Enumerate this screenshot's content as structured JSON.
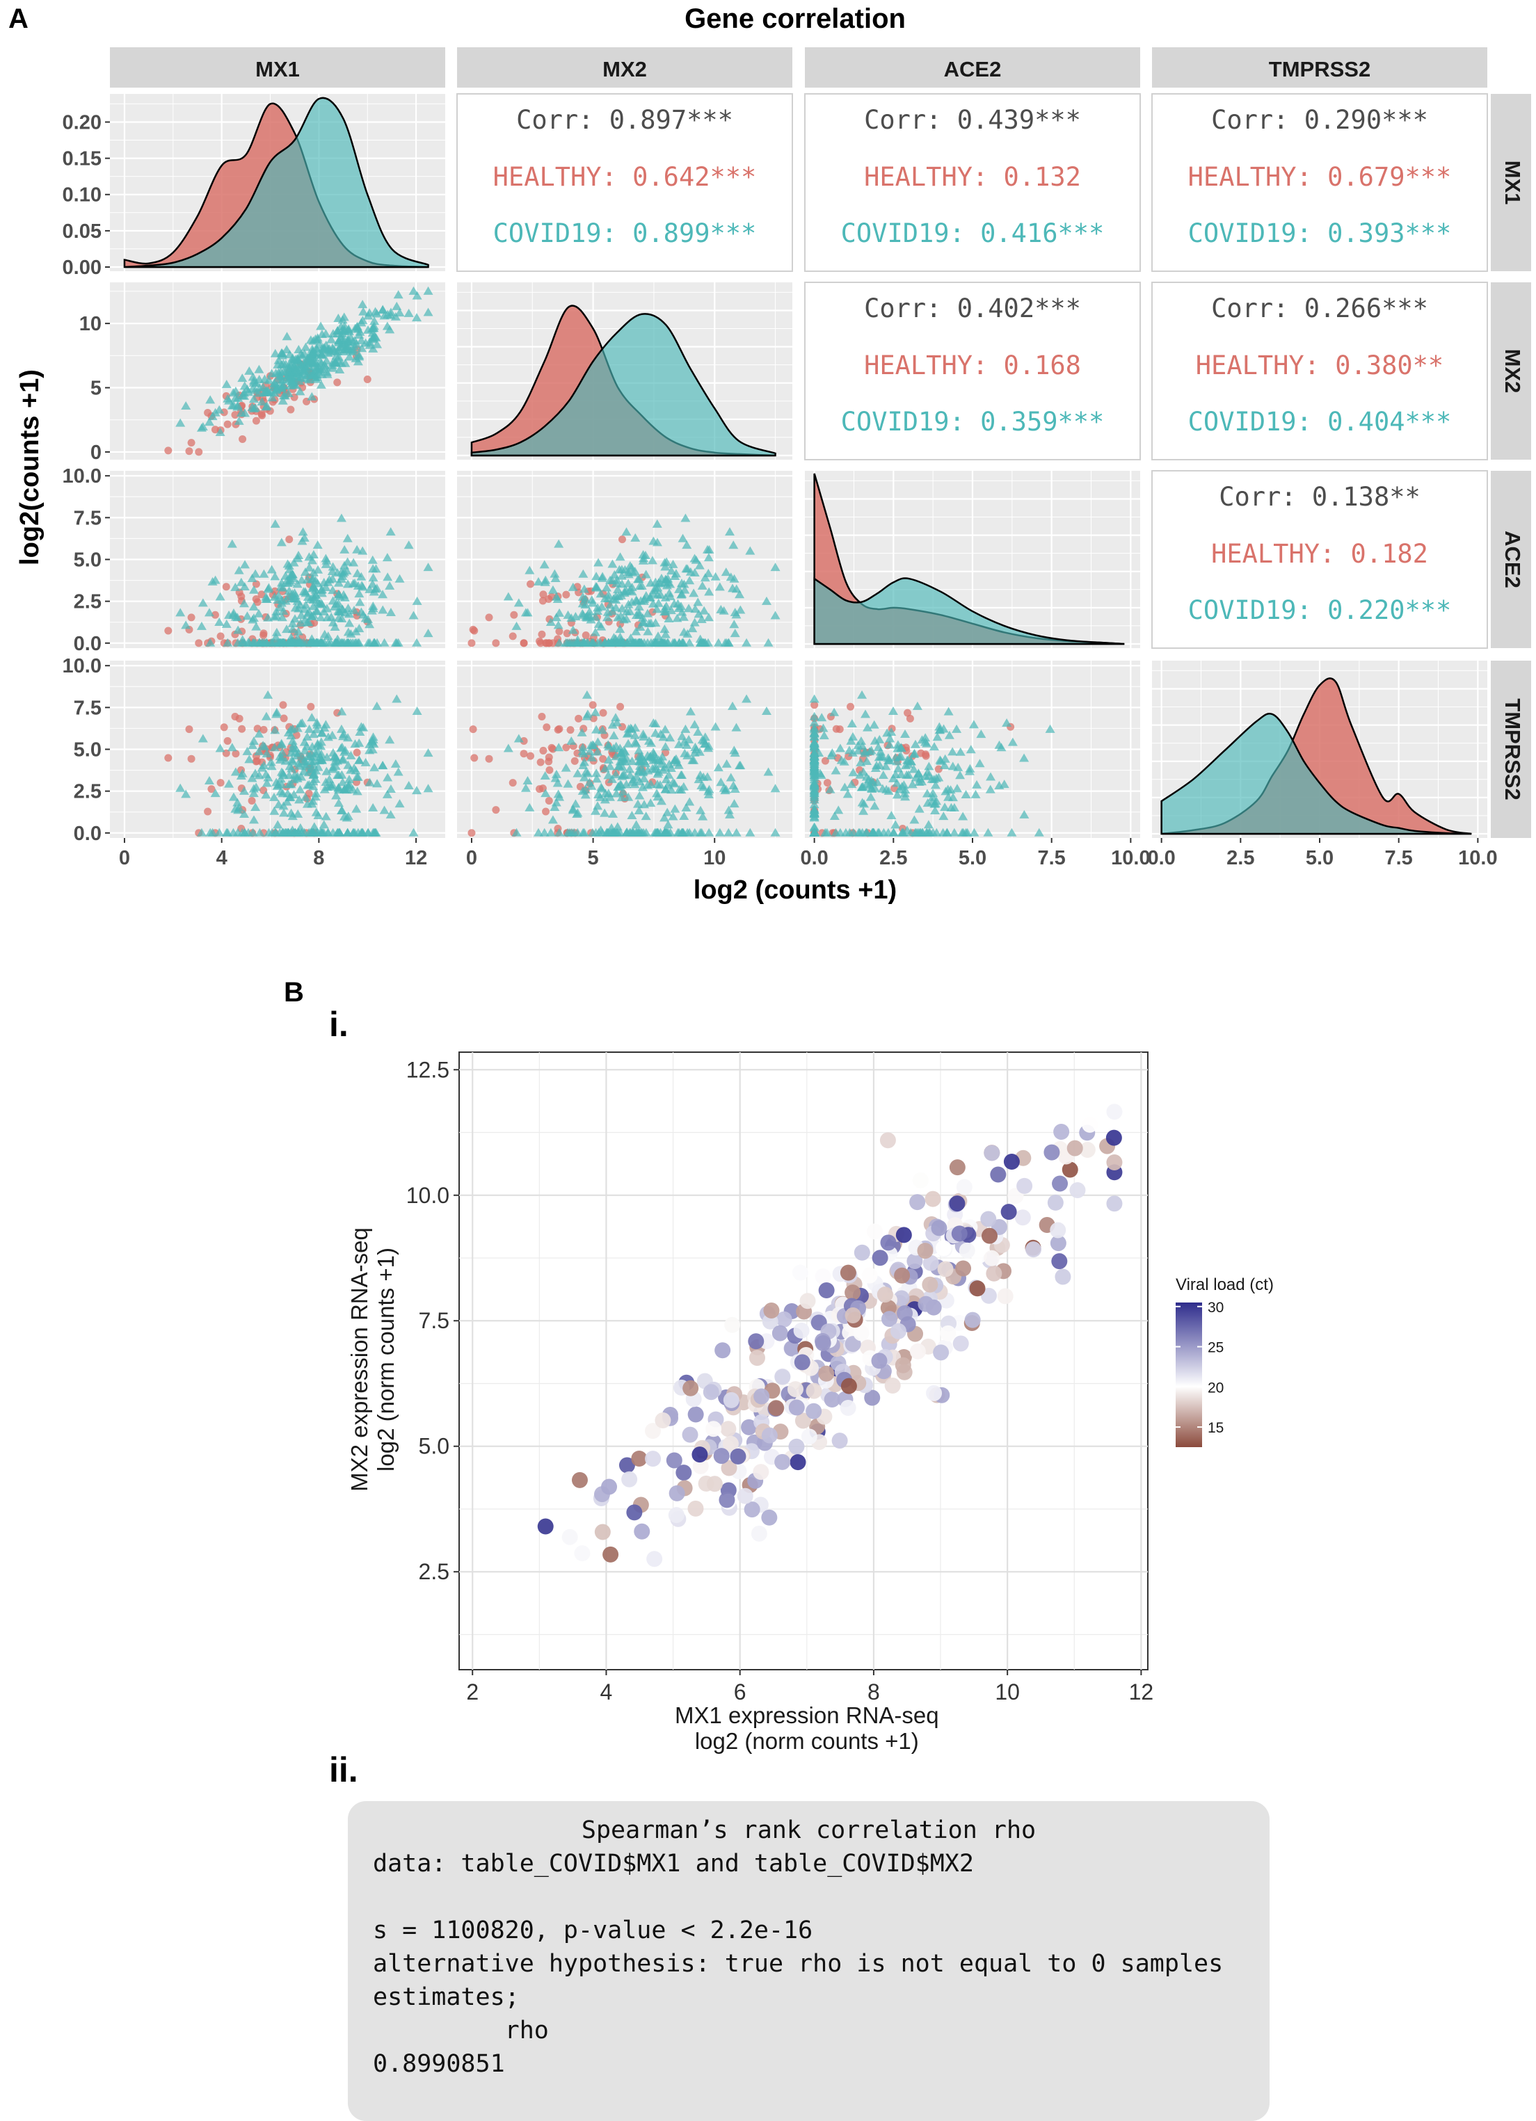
{
  "panel_a": {
    "label": "A",
    "title": "Gene correlation",
    "xlabel": "log2 (counts +1)",
    "ylabel": "log2(counts +1)",
    "genes": [
      "MX1",
      "MX2",
      "ACE2",
      "TMPRSS2"
    ],
    "colors": {
      "healthy": "#d9736b",
      "covid": "#4db8b8",
      "overlap": "#6b9a8f"
    },
    "correlations": [
      {
        "row": 0,
        "col": 1,
        "corr": "Corr: 0.897***",
        "healthy": "HEALTHY: 0.642***",
        "covid": "COVID19: 0.899***"
      },
      {
        "row": 0,
        "col": 2,
        "corr": "Corr: 0.439***",
        "healthy": "HEALTHY: 0.132",
        "covid": "COVID19: 0.416***"
      },
      {
        "row": 0,
        "col": 3,
        "corr": "Corr: 0.290***",
        "healthy": "HEALTHY: 0.679***",
        "covid": "COVID19: 0.393***"
      },
      {
        "row": 1,
        "col": 2,
        "corr": "Corr: 0.402***",
        "healthy": "HEALTHY: 0.168",
        "covid": "COVID19: 0.359***"
      },
      {
        "row": 1,
        "col": 3,
        "corr": "Corr: 0.266***",
        "healthy": "HEALTHY: 0.380**",
        "covid": "COVID19: 0.404***"
      },
      {
        "row": 2,
        "col": 3,
        "corr": "Corr: 0.138**",
        "healthy": "HEALTHY: 0.182",
        "covid": "COVID19: 0.220***"
      }
    ]
  },
  "chart_data": [
    {
      "type": "scatter",
      "panel": "A",
      "title": "Gene correlation",
      "xlabel": "log2 (counts +1)",
      "ylabel": "log2(counts +1)",
      "variables": [
        "MX1",
        "MX2",
        "ACE2",
        "TMPRSS2"
      ],
      "groups": [
        "HEALTHY",
        "COVID19"
      ],
      "axis_ranges": {
        "MX1": [
          -0.6,
          13.2
        ],
        "MX2": [
          -0.6,
          13.2
        ],
        "ACE2": [
          -0.3,
          10.3
        ],
        "TMPRSS2": [
          -0.3,
          10.3
        ]
      },
      "ticks": {
        "MX1": [
          "0",
          "4",
          "8",
          "12"
        ],
        "MX2": [
          "0",
          "5",
          "10"
        ],
        "ACE2": [
          "0.0",
          "2.5",
          "5.0",
          "7.5",
          "10.0"
        ],
        "TMPRSS2": [
          "0.0",
          "2.5",
          "5.0",
          "7.5",
          "10.0"
        ]
      },
      "density_y_ticks": [
        "0.00",
        "0.05",
        "0.10",
        "0.15",
        "0.20"
      ],
      "density_y_range": [
        0,
        0.235
      ],
      "densities": {
        "MX1": {
          "x": [
            0,
            1,
            2,
            3,
            4,
            5,
            6,
            7,
            8,
            9,
            10,
            11,
            12.5
          ],
          "healthy": [
            0.01,
            0.005,
            0.02,
            0.07,
            0.14,
            0.155,
            0.225,
            0.185,
            0.09,
            0.03,
            0.008,
            0.002,
            0
          ],
          "covid": [
            0,
            0.002,
            0.006,
            0.018,
            0.04,
            0.08,
            0.145,
            0.175,
            0.232,
            0.205,
            0.1,
            0.025,
            0.003
          ]
        },
        "MX2": {
          "x": [
            0,
            1,
            2,
            3,
            4,
            5,
            6,
            7,
            8,
            9,
            10,
            11,
            12.5
          ],
          "healthy": [
            0.018,
            0.03,
            0.06,
            0.13,
            0.205,
            0.175,
            0.095,
            0.055,
            0.025,
            0.01,
            0.004,
            0.002,
            0
          ],
          "covid": [
            0.004,
            0.008,
            0.018,
            0.04,
            0.075,
            0.13,
            0.17,
            0.195,
            0.18,
            0.12,
            0.065,
            0.02,
            0.003
          ]
        },
        "ACE2": {
          "x": [
            0,
            0.5,
            1,
            1.5,
            2,
            2.5,
            3,
            4,
            5,
            6,
            7,
            8,
            9,
            9.8
          ],
          "healthy": [
            0.235,
            0.16,
            0.085,
            0.055,
            0.048,
            0.05,
            0.048,
            0.04,
            0.028,
            0.016,
            0.008,
            0.004,
            0.002,
            0
          ],
          "covid": [
            0.09,
            0.075,
            0.06,
            0.058,
            0.07,
            0.085,
            0.09,
            0.072,
            0.045,
            0.025,
            0.012,
            0.005,
            0.002,
            0
          ]
        },
        "TMPRSS2": {
          "x": [
            0,
            1,
            2,
            3,
            3.5,
            4,
            4.5,
            5,
            5.5,
            6,
            7,
            7.5,
            8,
            9,
            9.8
          ],
          "healthy": [
            0.0,
            0.005,
            0.015,
            0.045,
            0.08,
            0.115,
            0.165,
            0.205,
            0.21,
            0.15,
            0.05,
            0.055,
            0.03,
            0.006,
            0
          ],
          "covid": [
            0.045,
            0.075,
            0.115,
            0.155,
            0.165,
            0.14,
            0.1,
            0.07,
            0.045,
            0.03,
            0.012,
            0.008,
            0.004,
            0.001,
            0
          ]
        }
      }
    },
    {
      "type": "scatter",
      "panel": "B.i",
      "xlabel": "MX1 expression RNA-seq\nlog2 (norm counts +1)",
      "ylabel": "MX2 expression RNA-seq\nlog2 (norm counts +1)",
      "xlim": [
        1.8,
        12.1
      ],
      "ylim": [
        0.55,
        12.85
      ],
      "x_ticks": [
        "2",
        "4",
        "6",
        "8",
        "10",
        "12"
      ],
      "y_ticks": [
        "2.5",
        "5.0",
        "7.5",
        "10.0",
        "12.5"
      ],
      "grid": true,
      "legend": {
        "title": "Viral load (ct)",
        "placement": "right",
        "ticks": [
          "30",
          "25",
          "20",
          "15"
        ],
        "range": [
          12.5,
          30.5
        ],
        "colors": [
          "#8b4a3c",
          "#ffffff",
          "#2e2c8c"
        ]
      },
      "points_note": "approx 380 points, MX1 vs MX2, colored by viral load"
    }
  ],
  "panel_b": {
    "label": "B",
    "sub_i": "i.",
    "sub_ii": "ii.",
    "xlabel_line1": "MX1 expression RNA-seq",
    "xlabel_line2": "log2 (norm counts +1)",
    "ylabel_line1": "MX2 expression RNA-seq",
    "ylabel_line2": "log2 (norm counts +1)",
    "legend_title": "Viral load (ct)"
  },
  "stats": {
    "title": "Spearman’s rank correlation rho",
    "data_line": "data: table_COVID$MX1 and table_COVID$MX2",
    "s_line": "s = 1100820, p-value < 2.2e-16",
    "alt_line": "alternative hypothesis: true rho is not equal to 0 samples",
    "estimates_line": "estimates;",
    "rho_label": "         rho",
    "rho_value": "0.8990851"
  }
}
